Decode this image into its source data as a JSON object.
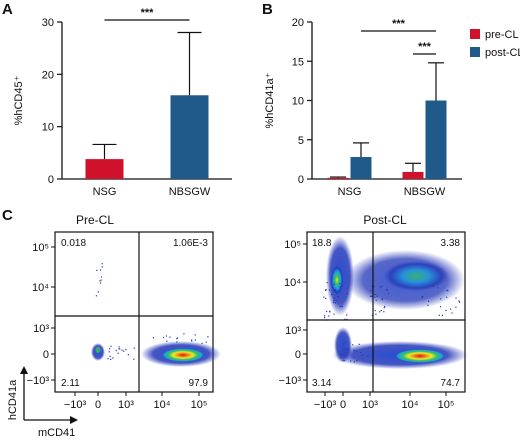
{
  "colors": {
    "pre_cl": "#d0112b",
    "post_cl": "#1f5a8a",
    "axis": "#111111"
  },
  "panels": {
    "a": "A",
    "b": "B",
    "c": "C"
  },
  "chart_data": [
    {
      "type": "bar",
      "panel": "A",
      "categories": [
        "NSG",
        "NBSGW"
      ],
      "values": [
        3.8,
        16.0
      ],
      "error_upper": [
        6.6,
        28.0
      ],
      "bar_colors": [
        "#d0112b",
        "#1f5a8a"
      ],
      "ylabel": "%hCD45⁺",
      "ylim": [
        0,
        30
      ],
      "yticks": [
        0,
        10,
        20,
        30
      ],
      "significance": [
        {
          "pair": [
            0,
            1
          ],
          "label": "***"
        }
      ]
    },
    {
      "type": "bar",
      "panel": "B",
      "categories": [
        "NSG",
        "NBSGW"
      ],
      "series": [
        {
          "name": "pre-CL",
          "color": "#d0112b",
          "values": [
            0.15,
            0.9
          ],
          "error_upper": [
            0.25,
            2.0
          ]
        },
        {
          "name": "post-CL",
          "color": "#1f5a8a",
          "values": [
            2.8,
            10.0
          ],
          "error_upper": [
            4.6,
            14.8
          ]
        }
      ],
      "ylabel": "%hCD41a⁺",
      "ylim": [
        0,
        20
      ],
      "yticks": [
        0,
        5,
        10,
        15,
        20
      ],
      "legend_position": "top-right",
      "significance": [
        {
          "between": [
            "NSG post-CL",
            "NBSGW post-CL"
          ],
          "label": "***"
        },
        {
          "between": [
            "NBSGW pre-CL",
            "NBSGW post-CL"
          ],
          "label": "***"
        }
      ]
    },
    {
      "type": "scatter",
      "subtype": "flow-cytometry-density",
      "panel": "C",
      "xlabel": "mCD41",
      "ylabel": "hCD41a",
      "x_ticks": [
        "−10³",
        "0",
        "10³",
        "10⁴",
        "10⁵"
      ],
      "y_ticks": [
        "10⁵",
        "10⁴",
        "10³",
        "0",
        "−10³"
      ],
      "plots": [
        {
          "title": "Pre-CL",
          "quadrants": {
            "top_left": "0.018",
            "top_right": "1.06E-3",
            "bottom_left": "2.11",
            "bottom_right": "97.9"
          }
        },
        {
          "title": "Post-CL",
          "quadrants": {
            "top_left": "18.8",
            "top_right": "3.38",
            "bottom_left": "3.14",
            "bottom_right": "74.7"
          }
        }
      ]
    }
  ]
}
